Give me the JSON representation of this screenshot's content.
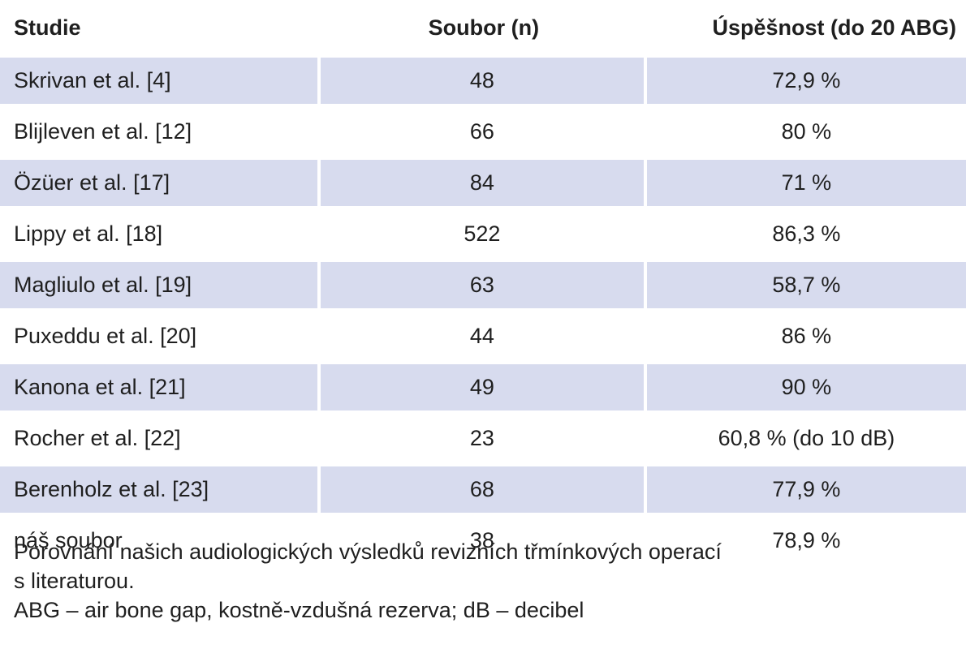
{
  "table": {
    "headers": [
      "Studie",
      "Soubor (n)",
      "Úspěšnost (do 20 ABG)"
    ],
    "rows": [
      {
        "study": "Skrivan et al. [4]",
        "n": "48",
        "success": "72,9 %"
      },
      {
        "study": "Blijleven et al. [12]",
        "n": "66",
        "success": "80 %"
      },
      {
        "study": "Özüer et al. [17]",
        "n": "84",
        "success": "71 %"
      },
      {
        "study": "Lippy et al. [18]",
        "n": "522",
        "success": "86,3 %"
      },
      {
        "study": "Magliulo et al. [19]",
        "n": "63",
        "success": "58,7 %"
      },
      {
        "study": "Puxeddu et al. [20]",
        "n": "44",
        "success": "86 %"
      },
      {
        "study": "Kanona et al. [21]",
        "n": "49",
        "success": "90 %"
      },
      {
        "study": "Rocher et al. [22]",
        "n": "23",
        "success": "60,8 % (do 10 dB)"
      },
      {
        "study": "Berenholz et al. [23]",
        "n": "68",
        "success": "77,9 %"
      },
      {
        "study": "náš soubor",
        "n": "38",
        "success": "78,9 %"
      }
    ]
  },
  "caption": {
    "line1": "Porovnání našich audiologických výsledků revizních třmínkových operací",
    "line2": "s literaturou.",
    "line3": "ABG – air bone gap, kostně-vzdušná rezerva; dB – decibel"
  },
  "colors": {
    "row_shade": "#d7dbee",
    "text": "#1f1f1f"
  }
}
